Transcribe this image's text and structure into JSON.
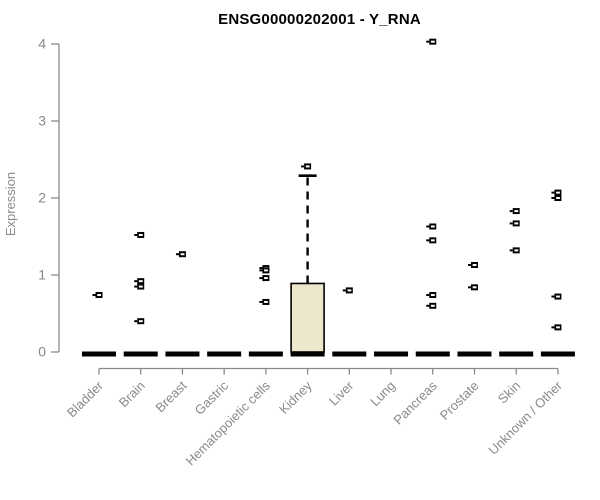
{
  "chart_data": {
    "type": "boxplot",
    "title": "ENSG00000202001 - Y_RNA",
    "ylabel": "Expression",
    "ylim": [
      0,
      4
    ],
    "yticks": [
      0,
      1,
      2,
      3,
      4
    ],
    "grid": false,
    "categories": [
      "Bladder",
      "Brain",
      "Breast",
      "Gastric",
      "Hematopoietic cells",
      "Kidney",
      "Liver",
      "Lung",
      "Pancreas",
      "Prostate",
      "Skin",
      "Unknown / Other"
    ],
    "series": [
      {
        "name": "Bladder",
        "median": 0,
        "points": [
          0.74
        ]
      },
      {
        "name": "Brain",
        "median": 0,
        "points": [
          1.52,
          0.92,
          0.85,
          0.4
        ]
      },
      {
        "name": "Breast",
        "median": 0,
        "points": [
          1.27
        ]
      },
      {
        "name": "Gastric",
        "median": 0,
        "points": []
      },
      {
        "name": "Hematopoietic cells",
        "median": 0,
        "points": [
          1.09,
          1.06,
          0.96,
          0.65
        ]
      },
      {
        "name": "Kidney",
        "median": 0,
        "box": {
          "q1": 0,
          "q3": 0.89,
          "whisker_high": 2.29
        },
        "points": [
          2.41
        ]
      },
      {
        "name": "Liver",
        "median": 0,
        "points": [
          0.8
        ]
      },
      {
        "name": "Lung",
        "median": 0,
        "points": []
      },
      {
        "name": "Pancreas",
        "median": 0,
        "points": [
          4.03,
          1.63,
          1.45,
          0.74,
          0.6
        ]
      },
      {
        "name": "Prostate",
        "median": 0,
        "points": [
          1.13,
          0.84
        ]
      },
      {
        "name": "Skin",
        "median": 0,
        "points": [
          1.83,
          1.67,
          1.32
        ]
      },
      {
        "name": "Unknown / Other",
        "median": 0,
        "points": [
          2.07,
          2.0,
          0.72,
          0.32
        ]
      }
    ],
    "colors": {
      "box_fill": "#EDE8CC",
      "box_border": "#000000",
      "axis": "#8A8A8A",
      "tick_label": "#8A8A8A",
      "point": "#000000",
      "title": "#000000"
    }
  }
}
